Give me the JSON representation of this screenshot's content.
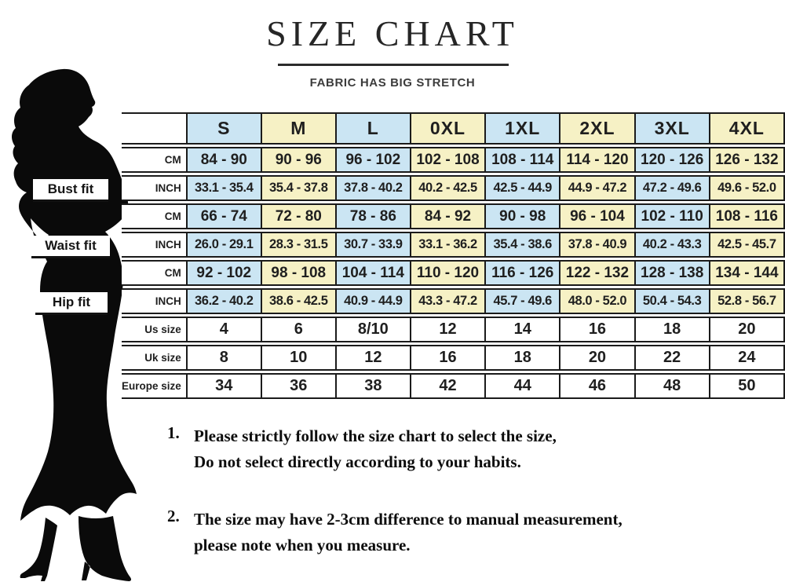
{
  "header": {
    "title": "SIZE CHART",
    "subtitle": "FABRIC HAS BIG STRETCH"
  },
  "fit_labels": [
    {
      "label": "Bust fit"
    },
    {
      "label": "Waist fit"
    },
    {
      "label": "Hip fit"
    }
  ],
  "size_table": {
    "columns": [
      "S",
      "M",
      "L",
      "0XL",
      "1XL",
      "2XL",
      "3XL",
      "4XL"
    ],
    "rows": [
      {
        "group": "Bust fit",
        "unit": "CM",
        "values": [
          "84 - 90",
          "90 - 96",
          "96 - 102",
          "102 - 108",
          "108 - 114",
          "114 - 120",
          "120 - 126",
          "126 - 132"
        ]
      },
      {
        "group": "Bust fit",
        "unit": "INCH",
        "values": [
          "33.1 - 35.4",
          "35.4 - 37.8",
          "37.8 - 40.2",
          "40.2 - 42.5",
          "42.5 - 44.9",
          "44.9 - 47.2",
          "47.2 - 49.6",
          "49.6 - 52.0"
        ]
      },
      {
        "group": "Waist fit",
        "unit": "CM",
        "values": [
          "66 - 74",
          "72 - 80",
          "78 - 86",
          "84 - 92",
          "90 - 98",
          "96 - 104",
          "102 - 110",
          "108 - 116"
        ]
      },
      {
        "group": "Waist fit",
        "unit": "INCH",
        "values": [
          "26.0 - 29.1",
          "28.3 - 31.5",
          "30.7 - 33.9",
          "33.1 - 36.2",
          "35.4 - 38.6",
          "37.8 - 40.9",
          "40.2 - 43.3",
          "42.5 - 45.7"
        ]
      },
      {
        "group": "Hip fit",
        "unit": "CM",
        "values": [
          "92 - 102",
          "98 - 108",
          "104 - 114",
          "110 - 120",
          "116 - 126",
          "122 - 132",
          "128 - 138",
          "134 - 144"
        ]
      },
      {
        "group": "Hip fit",
        "unit": "INCH",
        "values": [
          "36.2 - 40.2",
          "38.6 - 42.5",
          "40.9 - 44.9",
          "43.3 - 47.2",
          "45.7 - 49.6",
          "48.0 - 52.0",
          "50.4 - 54.3",
          "52.8 - 56.7"
        ]
      },
      {
        "group": "",
        "unit": "Us size",
        "values": [
          "4",
          "6",
          "8/10",
          "12",
          "14",
          "16",
          "18",
          "20"
        ]
      },
      {
        "group": "",
        "unit": "Uk size",
        "values": [
          "8",
          "10",
          "12",
          "16",
          "18",
          "20",
          "22",
          "24"
        ]
      },
      {
        "group": "",
        "unit": "Europe size",
        "values": [
          "34",
          "36",
          "38",
          "42",
          "44",
          "46",
          "48",
          "50"
        ]
      }
    ]
  },
  "notes": [
    {
      "number": "1.",
      "lines": [
        "Please strictly follow the size chart to select the size,",
        "Do not select directly according to your habits."
      ]
    },
    {
      "number": "2.",
      "lines": [
        "The size may have 2-3cm difference  to manual measurement,",
        "please note when you measure."
      ]
    }
  ],
  "chart_data": {
    "type": "table",
    "title": "SIZE CHART",
    "columns": [
      "S",
      "M",
      "L",
      "0XL",
      "1XL",
      "2XL",
      "3XL",
      "4XL"
    ],
    "measurements": {
      "bust_cm": [
        "84-90",
        "90-96",
        "96-102",
        "102-108",
        "108-114",
        "114-120",
        "120-126",
        "126-132"
      ],
      "bust_inch": [
        "33.1-35.4",
        "35.4-37.8",
        "37.8-40.2",
        "40.2-42.5",
        "42.5-44.9",
        "44.9-47.2",
        "47.2-49.6",
        "49.6-52.0"
      ],
      "waist_cm": [
        "66-74",
        "72-80",
        "78-86",
        "84-92",
        "90-98",
        "96-104",
        "102-110",
        "108-116"
      ],
      "waist_inch": [
        "26.0-29.1",
        "28.3-31.5",
        "30.7-33.9",
        "33.1-36.2",
        "35.4-38.6",
        "37.8-40.9",
        "40.2-43.3",
        "42.5-45.7"
      ],
      "hip_cm": [
        "92-102",
        "98-108",
        "104-114",
        "110-120",
        "116-126",
        "122-132",
        "128-138",
        "134-144"
      ],
      "hip_inch": [
        "36.2-40.2",
        "38.6-42.5",
        "40.9-44.9",
        "43.3-47.2",
        "45.7-49.6",
        "48.0-52.0",
        "50.4-54.3",
        "52.8-56.7"
      ],
      "us_size": [
        "4",
        "6",
        "8/10",
        "12",
        "14",
        "16",
        "18",
        "20"
      ],
      "uk_size": [
        "8",
        "10",
        "12",
        "16",
        "18",
        "20",
        "22",
        "24"
      ],
      "europe_size": [
        "34",
        "36",
        "38",
        "42",
        "44",
        "46",
        "48",
        "50"
      ]
    }
  },
  "colors": {
    "column_blue": "#cbe5f3",
    "column_yellow": "#f6f1c5",
    "border": "#1b1b1b",
    "silhouette": "#0a0a0a",
    "background": "#ffffff"
  }
}
